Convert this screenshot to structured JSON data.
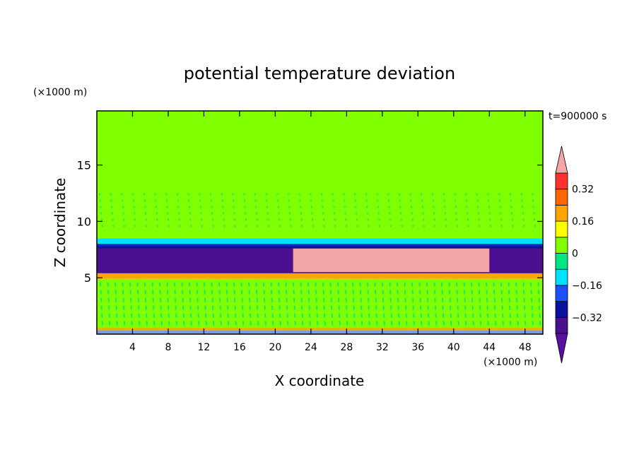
{
  "chart_data": {
    "type": "heatmap",
    "title": "potential temperature deviation",
    "time_label": "t=900000 s",
    "xlabel": "X coordinate",
    "ylabel": "Z coordinate",
    "x_unit": "(×1000 m)",
    "y_unit": "(×1000 m)",
    "xlim": [
      0,
      50
    ],
    "ylim": [
      0,
      19.8
    ],
    "x_ticks": [
      4,
      8,
      12,
      16,
      20,
      24,
      28,
      32,
      36,
      40,
      44,
      48
    ],
    "y_ticks": [
      5,
      10,
      15
    ],
    "colorbar": {
      "levels": [
        -0.4,
        -0.32,
        -0.24,
        -0.16,
        -0.08,
        0,
        0.08,
        0.16,
        0.24,
        0.32,
        0.4
      ],
      "colors": [
        "#5a0fa0",
        "#4a1090",
        "#0a10a0",
        "#1e50ff",
        "#00e0ff",
        "#00e680",
        "#80ff00",
        "#ffff00",
        "#ffa500",
        "#ff6600",
        "#ff3030",
        "#f4a6a6"
      ],
      "labels": [
        {
          "value": -0.32,
          "text": "−0.32"
        },
        {
          "value": -0.16,
          "text": "−0.16"
        },
        {
          "value": 0,
          "text": "0"
        },
        {
          "value": 0.16,
          "text": "0.16"
        },
        {
          "value": 0.32,
          "text": "0.32"
        }
      ],
      "extend": "both"
    },
    "regions": [
      {
        "name": "upper-layer-green",
        "z_range": [
          8.5,
          19.8
        ],
        "value": 0.04
      },
      {
        "name": "middle-band-cyan",
        "z_range": [
          7.8,
          8.5
        ],
        "value": -0.12
      },
      {
        "name": "cold-layer-purple",
        "z_range": [
          5.2,
          7.8
        ],
        "value": -0.36
      },
      {
        "name": "warm-anomaly-pink",
        "x_range": [
          22,
          44
        ],
        "z_range": [
          5.5,
          7.6
        ],
        "value": 0.42
      },
      {
        "name": "inversion-orange",
        "z_range": [
          4.9,
          5.4
        ],
        "value": 0.2
      },
      {
        "name": "boundary-layer-green",
        "z_range": [
          0.3,
          4.9
        ],
        "value": 0.02
      }
    ]
  }
}
